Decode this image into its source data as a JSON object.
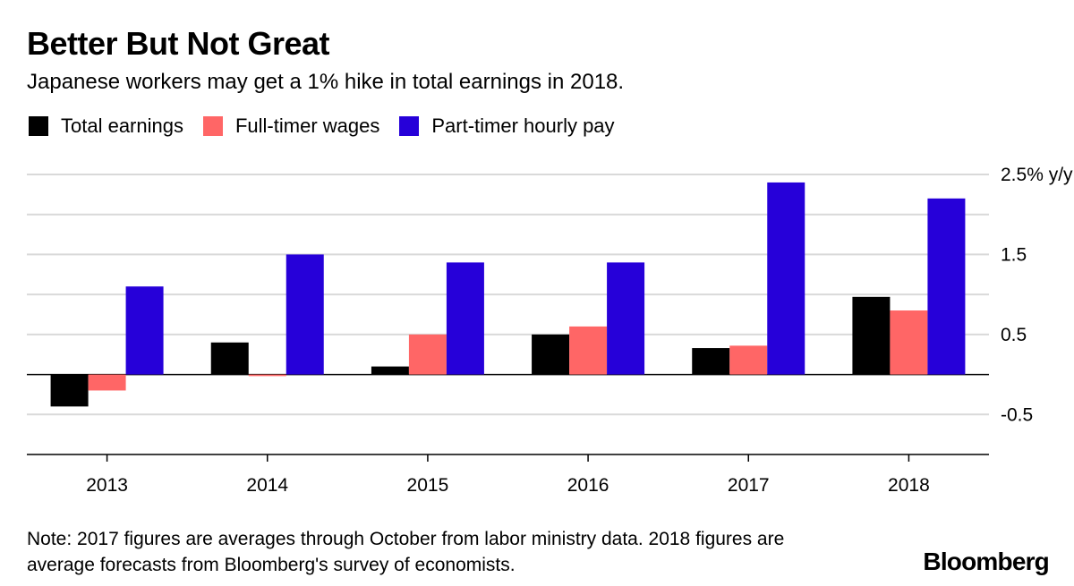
{
  "header": {
    "title": "Better But Not Great",
    "subtitle": "Japanese workers may get a 1% hike in total earnings in 2018."
  },
  "footer": {
    "note_line1": "Note: 2017 figures are averages through October from labor ministry data. 2018 figures are",
    "note_line2": "average forecasts from Bloomberg's survey of economists.",
    "brand": "Bloomberg"
  },
  "chart_data": {
    "type": "bar",
    "categories": [
      "2013",
      "2014",
      "2015",
      "2016",
      "2017",
      "2018"
    ],
    "series": [
      {
        "name": "Total earnings",
        "color": "#000000",
        "values": [
          -0.4,
          0.4,
          0.1,
          0.5,
          0.33,
          0.97
        ]
      },
      {
        "name": "Full-timer wages",
        "color": "#ff6666",
        "values": [
          -0.2,
          -0.02,
          0.5,
          0.6,
          0.36,
          0.8
        ]
      },
      {
        "name": "Part-timer hourly pay",
        "color": "#2600d9",
        "values": [
          1.1,
          1.5,
          1.4,
          1.4,
          2.4,
          2.2
        ]
      }
    ],
    "yticks": [
      {
        "value": 2.5,
        "label": "2.5% y/y"
      },
      {
        "value": 1.5,
        "label": "1.5"
      },
      {
        "value": 0.5,
        "label": "0.5"
      },
      {
        "value": -0.5,
        "label": "-0.5"
      }
    ],
    "gridlines": [
      2.5,
      2.0,
      1.5,
      1.0,
      0.5,
      0.0,
      -0.5
    ],
    "ylim": [
      -1.0,
      2.5
    ],
    "legend": "top-left",
    "grid": true
  }
}
